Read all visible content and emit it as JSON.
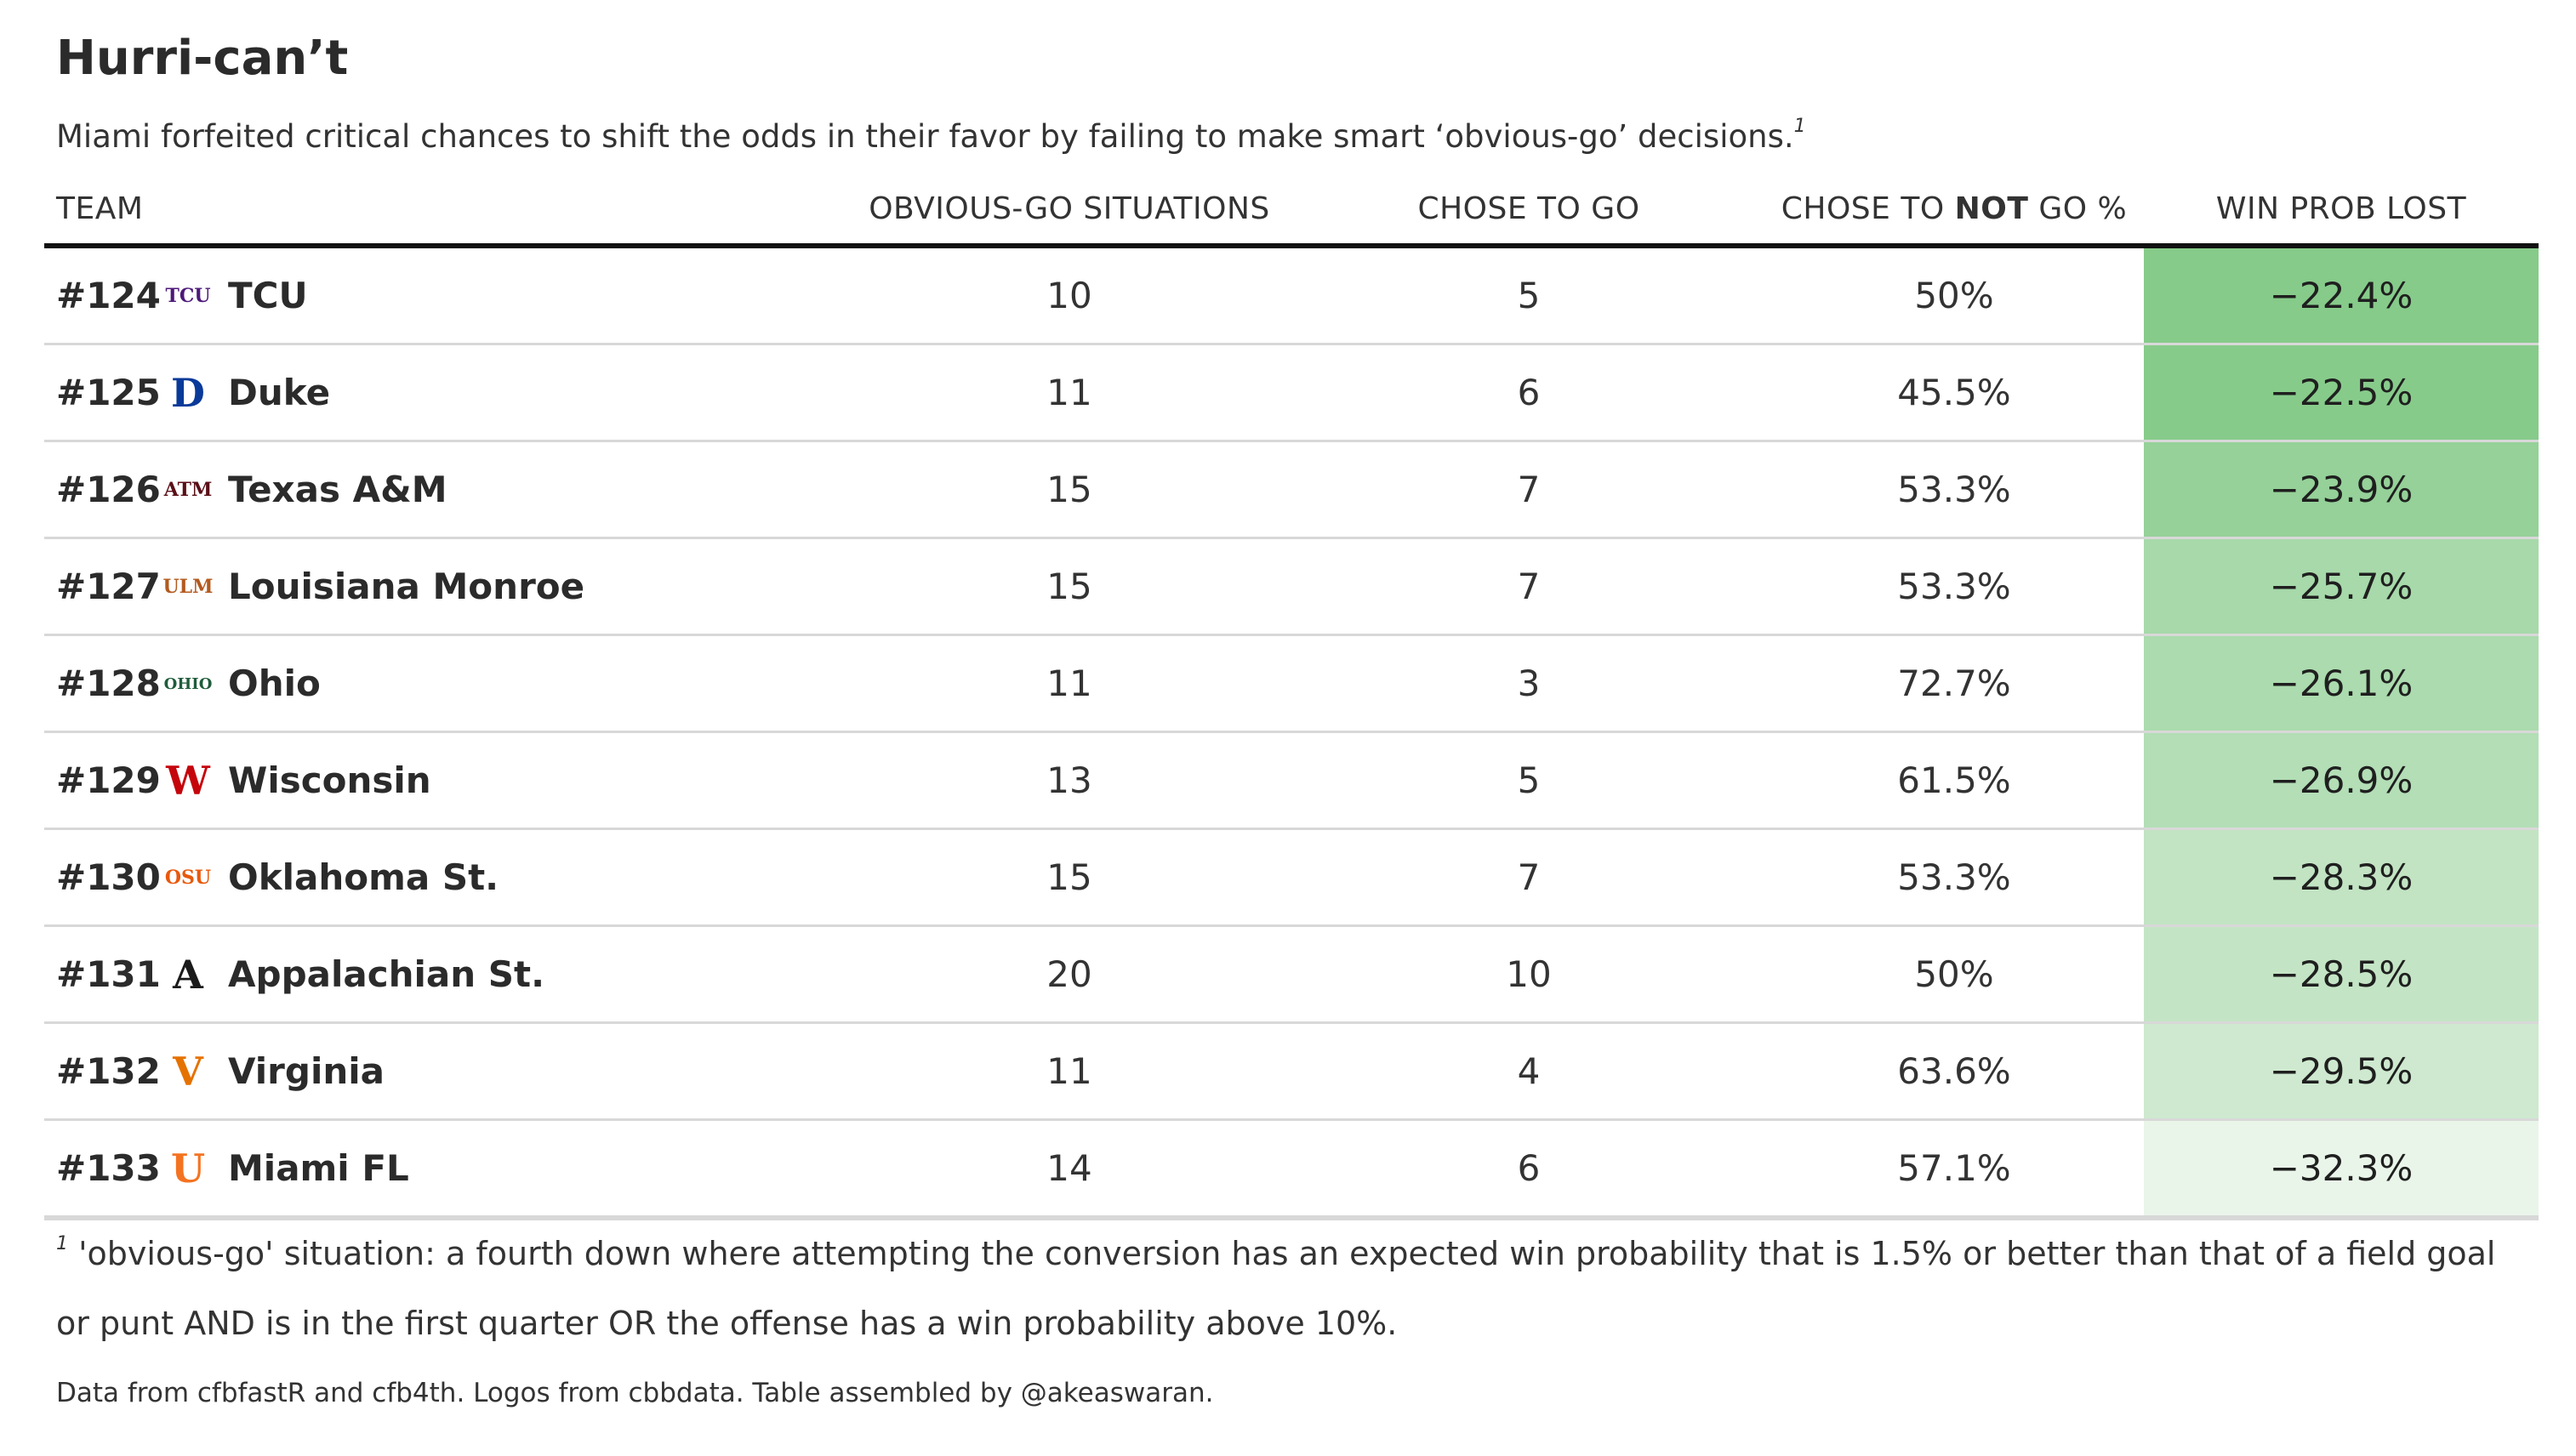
{
  "title": "Hurri-can’t",
  "subtitle": "Miami forfeited critical chances to shift the odds in their favor by failing to make smart ‘obvious-go’ decisions.",
  "subtitle_note_marker": "1",
  "columns": {
    "team": "TEAM",
    "obvious_go": "OBVIOUS-GO SITUATIONS",
    "chose_go": "CHOSE TO GO",
    "chose_not_pre": "CHOSE TO ",
    "chose_not_bold": "NOT",
    "chose_not_post": " GO %",
    "win_prob": "WIN PROB LOST"
  },
  "footnote_marker": "1",
  "footnote": "'obvious-go' situation: a fourth down where attempting the conversion has an expected win probability that is 1.5% or better than that of a field goal or punt AND is in the first quarter OR the offense has a win probability above 10%.",
  "credit": "Data from cfbfastR and cfb4th. Logos from cbbdata. Table assembled by @akeaswaran.",
  "colors": {
    "wp_darkest": "#86cb8a",
    "wp_lightest": "#eaf5ea",
    "header_rule": "#111111"
  },
  "chart_data": {
    "type": "table",
    "columns": [
      "TEAM",
      "OBVIOUS-GO SITUATIONS",
      "CHOSE TO GO",
      "CHOSE TO NOT GO %",
      "WIN PROB LOST"
    ],
    "rows": [
      {
        "rank": "#124",
        "team": "TCU",
        "logo_icon": "tcu-logo-icon",
        "logo_text": "TCU",
        "logo_color": "#4d1979",
        "obvious_go": "10",
        "chose_go": "5",
        "chose_not_pct": "50%",
        "win_prob_lost": "−22.4%",
        "wp_value": -22.4
      },
      {
        "rank": "#125",
        "team": "Duke",
        "logo_icon": "duke-logo-icon",
        "logo_text": "D",
        "logo_color": "#0a3a99",
        "obvious_go": "11",
        "chose_go": "6",
        "chose_not_pct": "45.5%",
        "win_prob_lost": "−22.5%",
        "wp_value": -22.5
      },
      {
        "rank": "#126",
        "team": "Texas A&M",
        "logo_icon": "texas-am-logo-icon",
        "logo_text": "ATM",
        "logo_color": "#5a0f17",
        "obvious_go": "15",
        "chose_go": "7",
        "chose_not_pct": "53.3%",
        "win_prob_lost": "−23.9%",
        "wp_value": -23.9
      },
      {
        "rank": "#127",
        "team": "Louisiana Monroe",
        "logo_icon": "ulm-logo-icon",
        "logo_text": "ULM",
        "logo_color": "#b35a1f",
        "obvious_go": "15",
        "chose_go": "7",
        "chose_not_pct": "53.3%",
        "win_prob_lost": "−25.7%",
        "wp_value": -25.7
      },
      {
        "rank": "#128",
        "team": "Ohio",
        "logo_icon": "ohio-bobcat-logo-icon",
        "logo_text": "OHIO",
        "logo_color": "#1f5c3a",
        "obvious_go": "11",
        "chose_go": "3",
        "chose_not_pct": "72.7%",
        "win_prob_lost": "−26.1%",
        "wp_value": -26.1
      },
      {
        "rank": "#129",
        "team": "Wisconsin",
        "logo_icon": "wisconsin-logo-icon",
        "logo_text": "W",
        "logo_color": "#c5050c",
        "obvious_go": "13",
        "chose_go": "5",
        "chose_not_pct": "61.5%",
        "win_prob_lost": "−26.9%",
        "wp_value": -26.9
      },
      {
        "rank": "#130",
        "team": "Oklahoma St.",
        "logo_icon": "oklahoma-st-logo-icon",
        "logo_text": "OSU",
        "logo_color": "#e8590c",
        "obvious_go": "15",
        "chose_go": "7",
        "chose_not_pct": "53.3%",
        "win_prob_lost": "−28.3%",
        "wp_value": -28.3
      },
      {
        "rank": "#131",
        "team": "Appalachian St.",
        "logo_icon": "appalachian-st-logo-icon",
        "logo_text": "A",
        "logo_color": "#1a1a1a",
        "obvious_go": "20",
        "chose_go": "10",
        "chose_not_pct": "50%",
        "win_prob_lost": "−28.5%",
        "wp_value": -28.5
      },
      {
        "rank": "#132",
        "team": "Virginia",
        "logo_icon": "virginia-logo-icon",
        "logo_text": "V",
        "logo_color": "#e57200",
        "obvious_go": "11",
        "chose_go": "4",
        "chose_not_pct": "63.6%",
        "win_prob_lost": "−29.5%",
        "wp_value": -29.5
      },
      {
        "rank": "#133",
        "team": "Miami FL",
        "logo_icon": "miami-u-logo-icon",
        "logo_text": "U",
        "logo_color": "#f47321",
        "obvious_go": "14",
        "chose_go": "6",
        "chose_not_pct": "57.1%",
        "win_prob_lost": "−32.3%",
        "wp_value": -32.3
      }
    ]
  }
}
